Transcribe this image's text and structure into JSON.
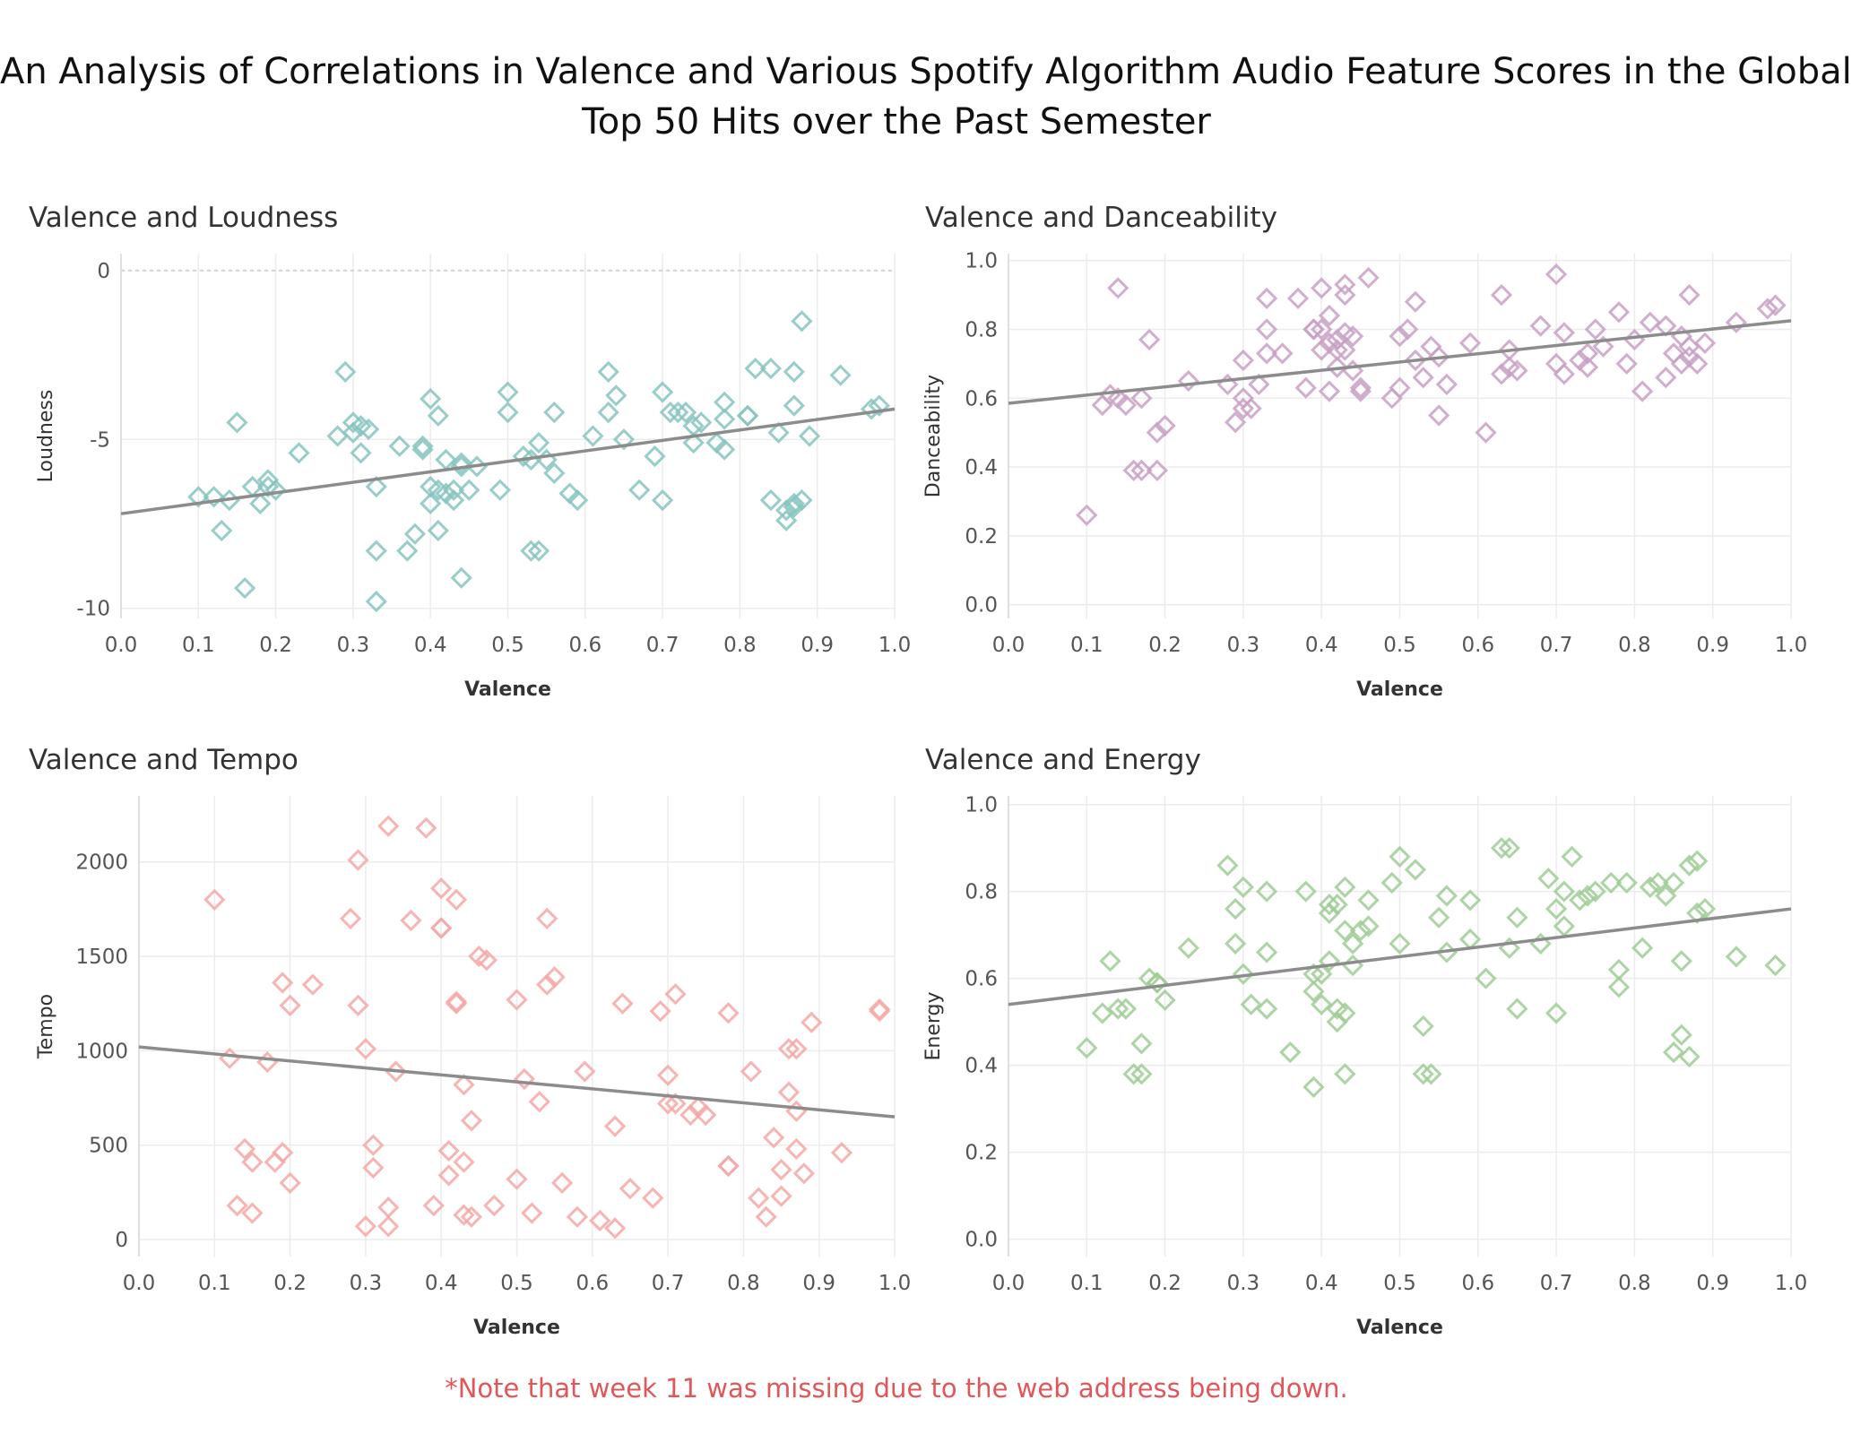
{
  "page": {
    "title_line1": "An Analysis of Correlations in Valence and Various Spotify Algorithm Audio Feature Scores in the Global",
    "title_line2": "Top 50 Hits over the Past Semester",
    "footnote": "*Note that week 11 was missing due to the web address being down."
  },
  "chart_data": [
    {
      "type": "scatter",
      "title": "Valence and Loudness",
      "xlabel": "Valence",
      "ylabel": "Loudness",
      "xlim": [
        0,
        1
      ],
      "ylim": [
        -10.3,
        0.5
      ],
      "xticks": [
        0.0,
        0.1,
        0.2,
        0.3,
        0.4,
        0.5,
        0.6,
        0.7,
        0.8,
        0.9,
        1.0
      ],
      "xtick_labels": [
        "0.0",
        "0.1",
        "0.2",
        "0.3",
        "0.4",
        "0.5",
        "0.6",
        "0.7",
        "0.8",
        "0.9",
        "1.0"
      ],
      "yticks": [
        0,
        -5,
        -10
      ],
      "ytick_labels": [
        "0",
        "-5",
        "-10"
      ],
      "zero_line_dashed": true,
      "color": "#86c4bf",
      "trend_color": "#8c8c8c",
      "marker": "diamond",
      "grid": true,
      "trendline": [
        [
          0,
          -7.2
        ],
        [
          1,
          -4.1
        ]
      ],
      "x": [
        0.1,
        0.12,
        0.14,
        0.15,
        0.13,
        0.16,
        0.17,
        0.18,
        0.19,
        0.2,
        0.19,
        0.23,
        0.28,
        0.29,
        0.3,
        0.3,
        0.31,
        0.32,
        0.31,
        0.33,
        0.33,
        0.33,
        0.36,
        0.37,
        0.38,
        0.39,
        0.39,
        0.4,
        0.4,
        0.4,
        0.41,
        0.41,
        0.41,
        0.42,
        0.42,
        0.43,
        0.43,
        0.44,
        0.44,
        0.44,
        0.45,
        0.46,
        0.49,
        0.5,
        0.5,
        0.52,
        0.53,
        0.53,
        0.54,
        0.54,
        0.55,
        0.56,
        0.56,
        0.58,
        0.59,
        0.61,
        0.63,
        0.63,
        0.64,
        0.65,
        0.67,
        0.69,
        0.7,
        0.7,
        0.71,
        0.72,
        0.73,
        0.74,
        0.74,
        0.75,
        0.77,
        0.78,
        0.78,
        0.78,
        0.81,
        0.81,
        0.82,
        0.84,
        0.84,
        0.85,
        0.86,
        0.86,
        0.87,
        0.87,
        0.87,
        0.87,
        0.88,
        0.88,
        0.89,
        0.93,
        0.97,
        0.98
      ],
      "y": [
        -6.7,
        -6.7,
        -6.8,
        -4.5,
        -7.7,
        -9.4,
        -6.4,
        -6.9,
        -6.2,
        -6.5,
        -6.4,
        -5.4,
        -4.9,
        -3.0,
        -4.8,
        -4.5,
        -5.4,
        -4.7,
        -4.6,
        -6.4,
        -8.3,
        -9.8,
        -5.2,
        -8.3,
        -7.8,
        -5.3,
        -5.2,
        -6.4,
        -3.8,
        -6.9,
        -4.3,
        -6.5,
        -7.7,
        -6.6,
        -5.6,
        -6.5,
        -6.8,
        -9.1,
        -5.7,
        -5.8,
        -6.5,
        -5.8,
        -6.5,
        -3.6,
        -4.2,
        -5.5,
        -8.3,
        -5.6,
        -8.3,
        -5.1,
        -5.6,
        -6.0,
        -4.2,
        -6.6,
        -6.8,
        -4.9,
        -3.0,
        -4.2,
        -3.7,
        -5.0,
        -6.5,
        -5.5,
        -3.6,
        -6.8,
        -4.2,
        -4.2,
        -4.2,
        -4.6,
        -5.1,
        -4.5,
        -5.1,
        -4.4,
        -3.9,
        -5.3,
        -4.3,
        -4.3,
        -2.9,
        -2.9,
        -6.8,
        -4.8,
        -7.1,
        -7.4,
        -6.9,
        -4.0,
        -3.0,
        -7.0,
        -6.8,
        -1.5,
        -4.9,
        -3.1,
        -4.1,
        -4.0
      ]
    },
    {
      "type": "scatter",
      "title": "Valence and Danceability",
      "xlabel": "Valence",
      "ylabel": "Danceability",
      "xlim": [
        0,
        1
      ],
      "ylim": [
        -0.04,
        1.02
      ],
      "xticks": [
        0.0,
        0.1,
        0.2,
        0.3,
        0.4,
        0.5,
        0.6,
        0.7,
        0.8,
        0.9,
        1.0
      ],
      "xtick_labels": [
        "0.0",
        "0.1",
        "0.2",
        "0.3",
        "0.4",
        "0.5",
        "0.6",
        "0.7",
        "0.8",
        "0.9",
        "1.0"
      ],
      "yticks": [
        0.0,
        0.2,
        0.4,
        0.6,
        0.8,
        1.0
      ],
      "ytick_labels": [
        "0.0",
        "0.2",
        "0.4",
        "0.6",
        "0.8",
        "1.0"
      ],
      "zero_line_dashed": false,
      "color": "#c9a0c6",
      "trend_color": "#8c8c8c",
      "marker": "diamond",
      "grid": true,
      "trendline": [
        [
          0,
          0.585
        ],
        [
          1,
          0.825
        ]
      ],
      "x": [
        0.1,
        0.12,
        0.13,
        0.14,
        0.14,
        0.15,
        0.16,
        0.17,
        0.17,
        0.18,
        0.19,
        0.19,
        0.2,
        0.23,
        0.28,
        0.29,
        0.3,
        0.3,
        0.3,
        0.31,
        0.32,
        0.33,
        0.33,
        0.33,
        0.35,
        0.37,
        0.38,
        0.39,
        0.39,
        0.4,
        0.4,
        0.4,
        0.41,
        0.41,
        0.41,
        0.42,
        0.42,
        0.42,
        0.43,
        0.43,
        0.43,
        0.43,
        0.44,
        0.44,
        0.45,
        0.45,
        0.46,
        0.49,
        0.5,
        0.5,
        0.51,
        0.52,
        0.52,
        0.53,
        0.54,
        0.55,
        0.55,
        0.56,
        0.59,
        0.61,
        0.63,
        0.63,
        0.64,
        0.64,
        0.65,
        0.68,
        0.7,
        0.7,
        0.71,
        0.71,
        0.73,
        0.74,
        0.74,
        0.75,
        0.76,
        0.78,
        0.79,
        0.8,
        0.81,
        0.82,
        0.84,
        0.84,
        0.85,
        0.86,
        0.86,
        0.87,
        0.87,
        0.87,
        0.88,
        0.89,
        0.93,
        0.97,
        0.98
      ],
      "y": [
        0.26,
        0.58,
        0.61,
        0.6,
        0.92,
        0.58,
        0.39,
        0.39,
        0.6,
        0.77,
        0.39,
        0.5,
        0.52,
        0.65,
        0.64,
        0.53,
        0.57,
        0.6,
        0.71,
        0.57,
        0.64,
        0.73,
        0.8,
        0.89,
        0.73,
        0.89,
        0.63,
        0.8,
        0.8,
        0.92,
        0.8,
        0.74,
        0.62,
        0.76,
        0.84,
        0.77,
        0.74,
        0.69,
        0.79,
        0.74,
        0.9,
        0.93,
        0.78,
        0.68,
        0.63,
        0.62,
        0.95,
        0.6,
        0.78,
        0.63,
        0.8,
        0.88,
        0.71,
        0.66,
        0.75,
        0.55,
        0.72,
        0.64,
        0.76,
        0.5,
        0.67,
        0.9,
        0.74,
        0.69,
        0.68,
        0.81,
        0.96,
        0.7,
        0.67,
        0.79,
        0.71,
        0.69,
        0.73,
        0.8,
        0.75,
        0.85,
        0.7,
        0.77,
        0.62,
        0.82,
        0.81,
        0.66,
        0.73,
        0.78,
        0.7,
        0.72,
        0.75,
        0.9,
        0.7,
        0.76,
        0.82,
        0.86,
        0.87
      ]
    },
    {
      "type": "scatter",
      "title": "Valence and Tempo",
      "xlabel": "Valence",
      "ylabel": "Tempo",
      "xlim": [
        0,
        1
      ],
      "ylim": [
        -90,
        2350
      ],
      "xticks": [
        0.0,
        0.1,
        0.2,
        0.3,
        0.4,
        0.5,
        0.6,
        0.7,
        0.8,
        0.9,
        1.0
      ],
      "xtick_labels": [
        "0.0",
        "0.1",
        "0.2",
        "0.3",
        "0.4",
        "0.5",
        "0.6",
        "0.7",
        "0.8",
        "0.9",
        "1.0"
      ],
      "yticks": [
        0,
        500,
        1000,
        1500,
        2000
      ],
      "ytick_labels": [
        "0",
        "500",
        "1000",
        "1500",
        "2000"
      ],
      "zero_line_dashed": false,
      "color": "#f4a7a6",
      "trend_color": "#8c8c8c",
      "marker": "diamond",
      "grid": true,
      "trendline": [
        [
          0,
          1020
        ],
        [
          1,
          650
        ]
      ],
      "x": [
        0.1,
        0.12,
        0.13,
        0.14,
        0.15,
        0.15,
        0.17,
        0.18,
        0.19,
        0.19,
        0.2,
        0.2,
        0.23,
        0.28,
        0.29,
        0.29,
        0.3,
        0.3,
        0.31,
        0.31,
        0.33,
        0.33,
        0.33,
        0.34,
        0.36,
        0.38,
        0.39,
        0.4,
        0.4,
        0.4,
        0.41,
        0.41,
        0.42,
        0.42,
        0.42,
        0.43,
        0.43,
        0.43,
        0.44,
        0.44,
        0.45,
        0.46,
        0.47,
        0.5,
        0.5,
        0.51,
        0.52,
        0.53,
        0.54,
        0.54,
        0.55,
        0.56,
        0.58,
        0.59,
        0.61,
        0.63,
        0.63,
        0.64,
        0.65,
        0.68,
        0.69,
        0.7,
        0.7,
        0.71,
        0.71,
        0.73,
        0.74,
        0.75,
        0.78,
        0.78,
        0.78,
        0.81,
        0.82,
        0.83,
        0.84,
        0.85,
        0.85,
        0.86,
        0.86,
        0.87,
        0.87,
        0.87,
        0.88,
        0.89,
        0.93,
        0.98,
        0.98
      ],
      "y": [
        1800,
        960,
        180,
        480,
        410,
        140,
        940,
        410,
        1360,
        460,
        300,
        1240,
        1350,
        1700,
        1240,
        2010,
        70,
        1010,
        500,
        380,
        70,
        170,
        2190,
        890,
        1690,
        2180,
        180,
        1860,
        1650,
        1650,
        340,
        470,
        1800,
        1250,
        1260,
        820,
        410,
        130,
        630,
        120,
        1500,
        1480,
        180,
        1270,
        320,
        850,
        140,
        730,
        1350,
        1700,
        1390,
        300,
        120,
        890,
        100,
        600,
        60,
        1250,
        270,
        220,
        1210,
        720,
        870,
        720,
        1300,
        660,
        700,
        660,
        1200,
        390,
        390,
        890,
        220,
        120,
        540,
        370,
        230,
        1010,
        780,
        1010,
        680,
        480,
        350,
        1150,
        460,
        1220,
        1210
      ],
      "y_note": ""
    },
    {
      "type": "scatter",
      "title": "Valence and Energy",
      "xlabel": "Valence",
      "ylabel": "Energy",
      "xlim": [
        0,
        1
      ],
      "ylim": [
        -0.04,
        1.02
      ],
      "xticks": [
        0.0,
        0.1,
        0.2,
        0.3,
        0.4,
        0.5,
        0.6,
        0.7,
        0.8,
        0.9,
        1.0
      ],
      "xtick_labels": [
        "0.0",
        "0.1",
        "0.2",
        "0.3",
        "0.4",
        "0.5",
        "0.6",
        "0.7",
        "0.8",
        "0.9",
        "1.0"
      ],
      "yticks": [
        0.0,
        0.2,
        0.4,
        0.6,
        0.8,
        1.0
      ],
      "ytick_labels": [
        "0.0",
        "0.2",
        "0.4",
        "0.6",
        "0.8",
        "1.0"
      ],
      "zero_line_dashed": false,
      "color": "#9fcd95",
      "trend_color": "#8c8c8c",
      "marker": "diamond",
      "grid": true,
      "trendline": [
        [
          0,
          0.54
        ],
        [
          1,
          0.76
        ]
      ],
      "x": [
        0.1,
        0.12,
        0.13,
        0.14,
        0.15,
        0.16,
        0.17,
        0.17,
        0.18,
        0.19,
        0.19,
        0.2,
        0.23,
        0.28,
        0.29,
        0.29,
        0.3,
        0.3,
        0.31,
        0.33,
        0.33,
        0.33,
        0.36,
        0.38,
        0.39,
        0.39,
        0.39,
        0.4,
        0.4,
        0.41,
        0.41,
        0.41,
        0.42,
        0.42,
        0.42,
        0.43,
        0.43,
        0.43,
        0.43,
        0.44,
        0.44,
        0.45,
        0.46,
        0.46,
        0.49,
        0.5,
        0.5,
        0.52,
        0.53,
        0.53,
        0.54,
        0.55,
        0.56,
        0.56,
        0.59,
        0.59,
        0.61,
        0.63,
        0.64,
        0.64,
        0.65,
        0.65,
        0.68,
        0.69,
        0.7,
        0.7,
        0.71,
        0.71,
        0.72,
        0.73,
        0.74,
        0.75,
        0.77,
        0.78,
        0.78,
        0.79,
        0.81,
        0.82,
        0.83,
        0.84,
        0.85,
        0.85,
        0.86,
        0.86,
        0.87,
        0.87,
        0.88,
        0.88,
        0.89,
        0.93,
        0.98
      ],
      "y": [
        0.44,
        0.52,
        0.64,
        0.53,
        0.53,
        0.38,
        0.38,
        0.45,
        0.6,
        0.59,
        0.59,
        0.55,
        0.67,
        0.86,
        0.76,
        0.68,
        0.81,
        0.61,
        0.54,
        0.53,
        0.66,
        0.8,
        0.43,
        0.8,
        0.35,
        0.57,
        0.61,
        0.54,
        0.61,
        0.75,
        0.77,
        0.64,
        0.53,
        0.5,
        0.77,
        0.81,
        0.52,
        0.71,
        0.38,
        0.68,
        0.63,
        0.71,
        0.78,
        0.72,
        0.82,
        0.88,
        0.68,
        0.85,
        0.49,
        0.38,
        0.38,
        0.74,
        0.79,
        0.66,
        0.78,
        0.69,
        0.6,
        0.9,
        0.67,
        0.9,
        0.53,
        0.74,
        0.68,
        0.83,
        0.52,
        0.76,
        0.8,
        0.72,
        0.88,
        0.78,
        0.79,
        0.8,
        0.82,
        0.62,
        0.58,
        0.82,
        0.67,
        0.81,
        0.82,
        0.79,
        0.43,
        0.82,
        0.47,
        0.64,
        0.42,
        0.86,
        0.75,
        0.87,
        0.76,
        0.65,
        0.63
      ]
    }
  ]
}
